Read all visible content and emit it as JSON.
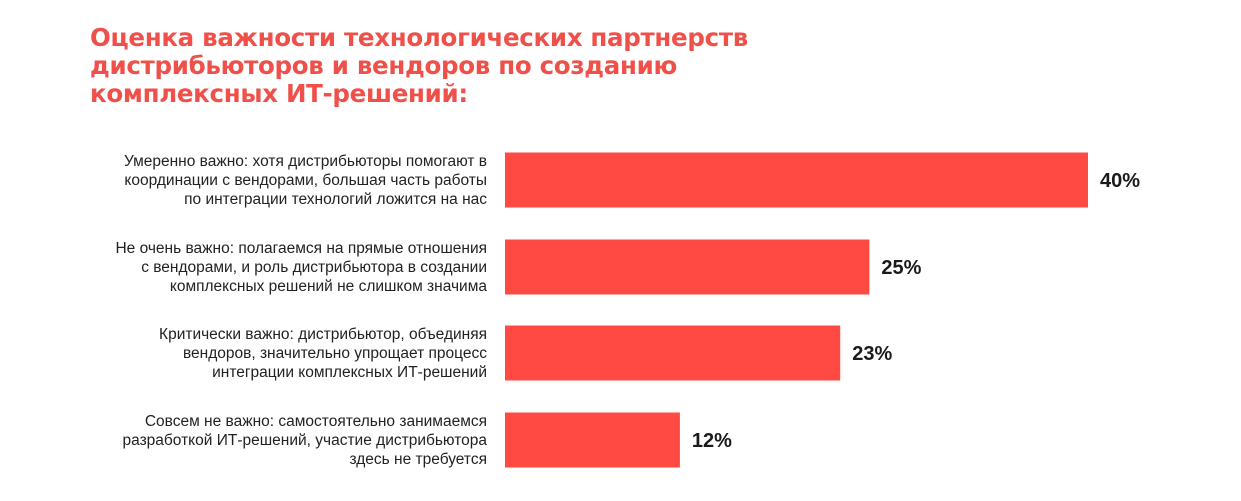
{
  "title_lines": [
    "Оценка важности технологических партнерств",
    "дистрибьюторов и вендоров по созданию",
    "комплексных ИТ-решений:"
  ],
  "colors": {
    "bar": "#ff4a43",
    "title": "#f0504a",
    "text": "#222222"
  },
  "chart_data": {
    "type": "bar",
    "orientation": "horizontal",
    "title": "Оценка важности технологических партнерств дистрибьюторов и вендоров по созданию комплексных ИТ-решений:",
    "categories": [
      [
        "Умеренно важно: хотя дистрибьюторы помогают в",
        "координации с вендорами, большая часть работы",
        "по интеграции технологий ложится на нас"
      ],
      [
        "Не очень важно: полагаемся на прямые отношения",
        "с вендорами, и роль дистрибьютора в создании",
        "комплексных решений не слишком значима"
      ],
      [
        "Критически важно: дистрибьютор, объединяя",
        "вендоров, значительно упрощает процесс",
        "интеграции комплексных ИТ-решений"
      ],
      [
        "Совсем не важно: самостоятельно занимаемся",
        "разработкой ИТ-решений, участие дистрибьютора",
        "здесь не требуется"
      ]
    ],
    "values": [
      40,
      25,
      23,
      12
    ],
    "value_labels": [
      "40%",
      "25%",
      "23%",
      "12%"
    ],
    "xlim": [
      0,
      40
    ],
    "grid": false,
    "legend": "none"
  }
}
